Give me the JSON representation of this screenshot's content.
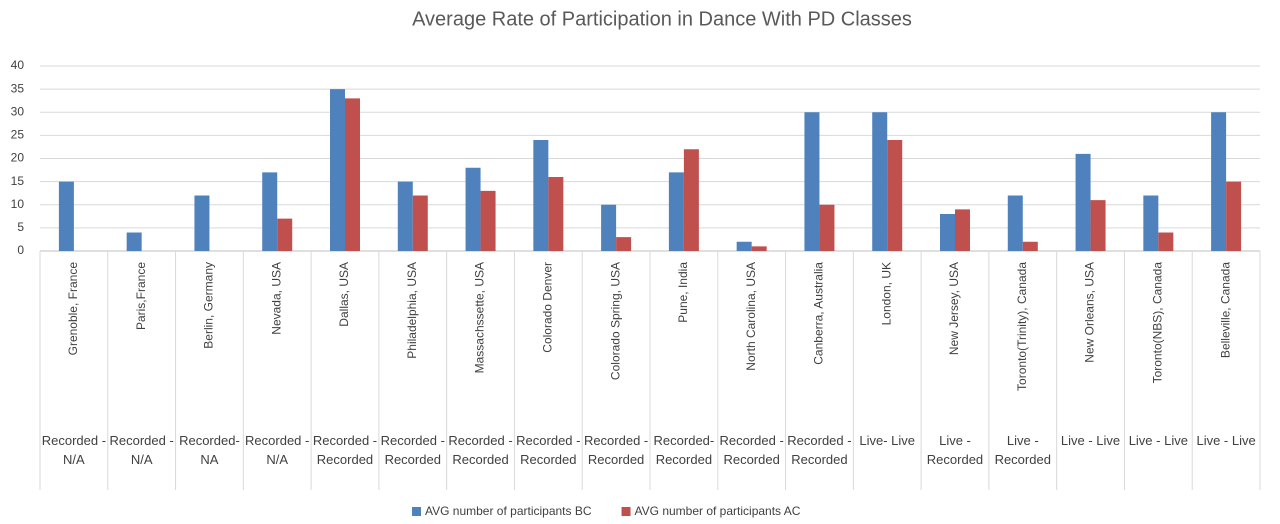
{
  "chart_data": {
    "type": "bar",
    "title": "Average Rate of Participation in Dance With PD Classes",
    "categories": [
      "Grenoble, France",
      "Paris,France",
      "Berlin, Germany",
      "Nevada, USA",
      "Dallas, USA",
      "Philadelphia, USA",
      "Massachssette, USA",
      "Colorado Denver",
      "Colorado Spring, USA",
      "Pune, India",
      "North Carolina, USA",
      "Canberra, Australia",
      "London, UK",
      "New Jersey, USA",
      "Toronto(Trinity), Canada",
      "New Orleans, USA",
      "Toronto(NBS), Canada",
      "Belleville, Canada"
    ],
    "category_groups": [
      "Recorded - N/A",
      "Recorded - N/A",
      "Recorded- NA",
      "Recorded - N/A",
      "Recorded - Recorded",
      "Recorded - Recorded",
      "Recorded - Recorded",
      "Recorded - Recorded",
      "Recorded - Recorded",
      "Recorded- Recorded",
      "Recorded - Recorded",
      "Recorded - Recorded",
      "Live- Live",
      "Live - Recorded",
      "Live - Recorded",
      "Live - Live",
      "Live - Live",
      "Live - Live"
    ],
    "series": [
      {
        "name": "AVG number of participants BC",
        "color": "#4f81bd",
        "values": [
          15,
          4,
          12,
          17,
          35,
          15,
          18,
          24,
          10,
          17,
          2,
          30,
          30,
          8,
          12,
          21,
          12,
          30
        ]
      },
      {
        "name": "AVG number of participants AC",
        "color": "#c0504d",
        "values": [
          null,
          null,
          null,
          7,
          33,
          12,
          13,
          16,
          3,
          22,
          1,
          10,
          24,
          9,
          2,
          11,
          4,
          15
        ]
      }
    ],
    "ylim": [
      0,
      40
    ],
    "yticks": [
      0,
      5,
      10,
      15,
      20,
      25,
      30,
      35,
      40
    ],
    "grid": true,
    "legend": "bottom"
  }
}
